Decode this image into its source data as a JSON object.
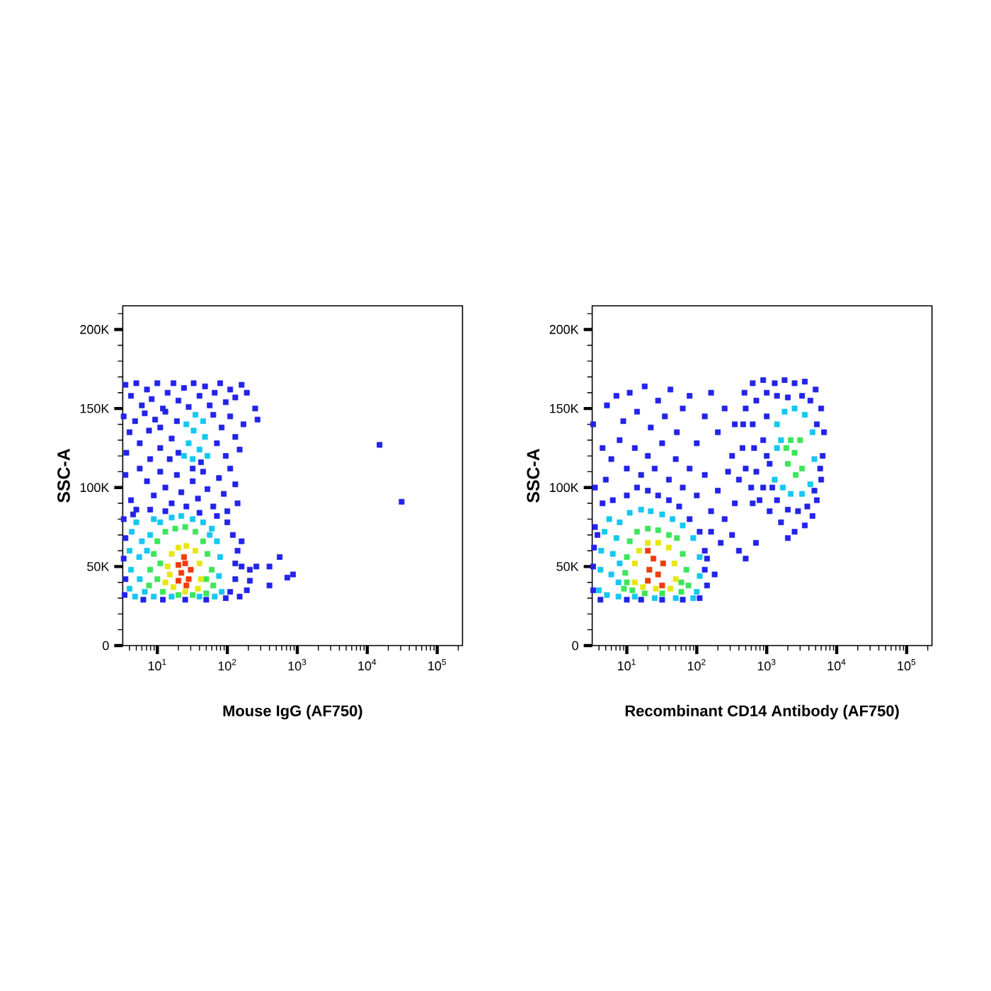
{
  "chart_data": [
    {
      "type": "scatter",
      "xlabel": "Mouse IgG (AF750)",
      "ylabel": "SSC-A",
      "log": "x",
      "marker": "square",
      "xlim": [
        3.2,
        230000
      ],
      "ylim": [
        0,
        215000
      ],
      "xticks": [
        {
          "value": 4,
          "label": null
        },
        {
          "value": 5,
          "label": null
        },
        {
          "value": 6,
          "label": null
        },
        {
          "value": 7,
          "label": null
        },
        {
          "value": 8,
          "label": null
        },
        {
          "value": 9,
          "label": null
        },
        {
          "value": 10,
          "label": "10$^{1}$"
        },
        {
          "value": 20,
          "label": null
        },
        {
          "value": 30,
          "label": null
        },
        {
          "value": 40,
          "label": null
        },
        {
          "value": 50,
          "label": null
        },
        {
          "value": 60,
          "label": null
        },
        {
          "value": 70,
          "label": null
        },
        {
          "value": 80,
          "label": null
        },
        {
          "value": 90,
          "label": null
        },
        {
          "value": 100,
          "label": "10$^{2}$"
        },
        {
          "value": 200,
          "label": null
        },
        {
          "value": 300,
          "label": null
        },
        {
          "value": 400,
          "label": null
        },
        {
          "value": 500,
          "label": null
        },
        {
          "value": 600,
          "label": null
        },
        {
          "value": 700,
          "label": null
        },
        {
          "value": 800,
          "label": null
        },
        {
          "value": 900,
          "label": null
        },
        {
          "value": 1000,
          "label": "10$^{3}$"
        },
        {
          "value": 2000,
          "label": null
        },
        {
          "value": 3000,
          "label": null
        },
        {
          "value": 4000,
          "label": null
        },
        {
          "value": 5000,
          "label": null
        },
        {
          "value": 6000,
          "label": null
        },
        {
          "value": 7000,
          "label": null
        },
        {
          "value": 8000,
          "label": null
        },
        {
          "value": 9000,
          "label": null
        },
        {
          "value": 10000,
          "label": "10$^{4}$"
        },
        {
          "value": 20000,
          "label": null
        },
        {
          "value": 30000,
          "label": null
        },
        {
          "value": 40000,
          "label": null
        },
        {
          "value": 50000,
          "label": null
        },
        {
          "value": 60000,
          "label": null
        },
        {
          "value": 70000,
          "label": null
        },
        {
          "value": 80000,
          "label": null
        },
        {
          "value": 90000,
          "label": null
        },
        {
          "value": 100000,
          "label": "10$^{5}$"
        },
        {
          "value": 200000,
          "label": null
        }
      ],
      "yticks": [
        0,
        {
          "value": 10000,
          "label": null
        },
        {
          "value": 20000,
          "label": null
        },
        {
          "value": 30000,
          "label": null
        },
        {
          "value": 40000,
          "label": null
        },
        {
          "value": 50000,
          "label": "50K"
        },
        {
          "value": 60000,
          "label": null
        },
        {
          "value": 70000,
          "label": null
        },
        {
          "value": 80000,
          "label": null
        },
        {
          "value": 90000,
          "label": null
        },
        {
          "value": 100000,
          "label": "100K"
        },
        {
          "value": 110000,
          "label": null
        },
        {
          "value": 120000,
          "label": null
        },
        {
          "value": 130000,
          "label": null
        },
        {
          "value": 140000,
          "label": null
        },
        {
          "value": 150000,
          "label": "150K"
        },
        {
          "value": 160000,
          "label": null
        },
        {
          "value": 170000,
          "label": null
        },
        {
          "value": 180000,
          "label": null
        },
        {
          "value": 190000,
          "label": null
        },
        {
          "value": 200000,
          "label": "200K"
        },
        {
          "value": 210000,
          "label": null
        }
      ],
      "series": [
        {
          "color": "#2323e8",
          "x": [
            3.5,
            4.2,
            5.0,
            6.0,
            7.1,
            8.3,
            10,
            12,
            14,
            17,
            20,
            24,
            28,
            33,
            40,
            48,
            56,
            66,
            79,
            95,
            110,
            130,
            160,
            190,
            3.3,
            4.0,
            3.6,
            4.8,
            5.6,
            6.6,
            7.9,
            7.6,
            9.3,
            11,
            11,
            13,
            16,
            15,
            19,
            20,
            63,
            71,
            83,
            95,
            110,
            130,
            150,
            170,
            32,
            42,
            270,
            250,
            5.6,
            7.1,
            8.9,
            11,
            13,
            16,
            19,
            22,
            26,
            32,
            38,
            45,
            52,
            63,
            76,
            89,
            110,
            130,
            140,
            4.2,
            3.5,
            5.0,
            100,
            100,
            120,
            140,
            160,
            130,
            110,
            150,
            95,
            130,
            160,
            3.3,
            3.5,
            3.3,
            3.5,
            3.4,
            4.5,
            7.9,
            13,
            40,
            71,
            25,
            12,
            6.3,
            50,
            210,
            210,
            260,
            400,
            400,
            560,
            720,
            870,
            190,
            15000,
            31000
          ],
          "values": [
            165000,
            158000,
            166000,
            152000,
            162000,
            156000,
            166000,
            150000,
            160000,
            166000,
            155000,
            163000,
            151000,
            166000,
            158000,
            164000,
            152000,
            160000,
            166000,
            154000,
            162000,
            157000,
            165000,
            160000,
            145000,
            135000,
            122000,
            142000,
            128000,
            147000,
            118000,
            136000,
            143000,
            125000,
            138000,
            148000,
            131000,
            118000,
            142000,
            122000,
            146000,
            128000,
            138000,
            120000,
            145000,
            132000,
            124000,
            140000,
            112000,
            116000,
            143000,
            150000,
            112000,
            104000,
            95000,
            110000,
            100000,
            90000,
            108000,
            97000,
            88000,
            104000,
            93000,
            110000,
            99000,
            88000,
            106000,
            96000,
            112000,
            102000,
            90000,
            92000,
            108000,
            86000,
            85000,
            78000,
            70000,
            60000,
            50000,
            42000,
            34000,
            31000,
            30000,
            52000,
            66000,
            80000,
            68000,
            55000,
            42000,
            32000,
            83000,
            86000,
            85000,
            84000,
            82000,
            29000,
            29000,
            29000,
            29000,
            48000,
            41000,
            50000,
            50000,
            38000,
            56000,
            43000,
            45000,
            35000,
            127000,
            91000
          ]
        },
        {
          "color": "#14c8f0",
          "x": [
            24,
            28,
            33,
            40,
            48,
            26,
            35,
            45,
            52,
            32,
            4.0,
            4.2,
            4.0,
            4.3,
            5.0,
            4.8,
            5.6,
            5.5,
            6.0,
            6.6,
            8.9,
            11,
            16,
            22,
            32,
            45,
            60,
            71,
            79,
            76,
            83,
            66,
            40,
            16,
            8.9,
            7.9,
            56,
            7.1
          ],
          "values": [
            120000,
            128000,
            136000,
            124000,
            132000,
            140000,
            146000,
            142000,
            120000,
            118000,
            36000,
            48000,
            60000,
            72000,
            78000,
            31000,
            42000,
            56000,
            66000,
            34000,
            80000,
            78000,
            81000,
            82000,
            80000,
            78000,
            74000,
            66000,
            56000,
            44000,
            34000,
            31000,
            31000,
            31000,
            31000,
            70000,
            70000,
            60000
          ]
        },
        {
          "color": "#3ce65a",
          "x": [
            7.6,
            7.9,
            8.9,
            10,
            13,
            18,
            25,
            35,
            45,
            52,
            60,
            63,
            50,
            32,
            20,
            12,
            10,
            11,
            50
          ],
          "values": [
            38000,
            48000,
            58000,
            66000,
            72000,
            74000,
            75000,
            72000,
            66000,
            58000,
            48000,
            38000,
            33000,
            32000,
            32000,
            34000,
            42000,
            52000,
            42000
          ]
        },
        {
          "color": "#e8e614",
          "x": [
            13,
            14,
            16,
            20,
            26,
            35,
            40,
            42,
            38,
            25,
            17,
            15
          ],
          "values": [
            40000,
            50000,
            58000,
            62000,
            63000,
            60000,
            52000,
            42000,
            36000,
            34000,
            37000,
            45000
          ]
        },
        {
          "color": "#f03c0a",
          "x": [
            20,
            22,
            25,
            28,
            24,
            30,
            20,
            26
          ],
          "values": [
            41000,
            46000,
            52000,
            42000,
            56000,
            48000,
            51000,
            38000
          ]
        }
      ]
    },
    {
      "type": "scatter",
      "xlabel": "Recombinant CD14 Antibody (AF750)",
      "ylabel": "SSC-A",
      "log": "x",
      "marker": "square",
      "xlim": [
        3.2,
        230000
      ],
      "ylim": [
        0,
        215000
      ],
      "xticks": [
        {
          "value": 4,
          "label": null
        },
        {
          "value": 5,
          "label": null
        },
        {
          "value": 6,
          "label": null
        },
        {
          "value": 7,
          "label": null
        },
        {
          "value": 8,
          "label": null
        },
        {
          "value": 9,
          "label": null
        },
        {
          "value": 10,
          "label": "10$^{1}$"
        },
        {
          "value": 20,
          "label": null
        },
        {
          "value": 30,
          "label": null
        },
        {
          "value": 40,
          "label": null
        },
        {
          "value": 50,
          "label": null
        },
        {
          "value": 60,
          "label": null
        },
        {
          "value": 70,
          "label": null
        },
        {
          "value": 80,
          "label": null
        },
        {
          "value": 90,
          "label": null
        },
        {
          "value": 100,
          "label": "10$^{2}$"
        },
        {
          "value": 200,
          "label": null
        },
        {
          "value": 300,
          "label": null
        },
        {
          "value": 400,
          "label": null
        },
        {
          "value": 500,
          "label": null
        },
        {
          "value": 600,
          "label": null
        },
        {
          "value": 700,
          "label": null
        },
        {
          "value": 800,
          "label": null
        },
        {
          "value": 900,
          "label": null
        },
        {
          "value": 1000,
          "label": "10$^{3}$"
        },
        {
          "value": 2000,
          "label": null
        },
        {
          "value": 3000,
          "label": null
        },
        {
          "value": 4000,
          "label": null
        },
        {
          "value": 5000,
          "label": null
        },
        {
          "value": 6000,
          "label": null
        },
        {
          "value": 7000,
          "label": null
        },
        {
          "value": 8000,
          "label": null
        },
        {
          "value": 9000,
          "label": null
        },
        {
          "value": 10000,
          "label": "10$^{4}$"
        },
        {
          "value": 20000,
          "label": null
        },
        {
          "value": 30000,
          "label": null
        },
        {
          "value": 40000,
          "label": null
        },
        {
          "value": 50000,
          "label": null
        },
        {
          "value": 60000,
          "label": null
        },
        {
          "value": 70000,
          "label": null
        },
        {
          "value": 80000,
          "label": null
        },
        {
          "value": 90000,
          "label": null
        },
        {
          "value": 100000,
          "label": "10$^{5}$"
        },
        {
          "value": 200000,
          "label": null
        }
      ],
      "yticks": [
        0,
        {
          "value": 10000,
          "label": null
        },
        {
          "value": 20000,
          "label": null
        },
        {
          "value": 30000,
          "label": null
        },
        {
          "value": 40000,
          "label": null
        },
        {
          "value": 50000,
          "label": "50K"
        },
        {
          "value": 60000,
          "label": null
        },
        {
          "value": 70000,
          "label": null
        },
        {
          "value": 80000,
          "label": null
        },
        {
          "value": 90000,
          "label": null
        },
        {
          "value": 100000,
          "label": "100K"
        },
        {
          "value": 110000,
          "label": null
        },
        {
          "value": 120000,
          "label": null
        },
        {
          "value": 130000,
          "label": null
        },
        {
          "value": 140000,
          "label": null
        },
        {
          "value": 150000,
          "label": "150K"
        },
        {
          "value": 160000,
          "label": null
        },
        {
          "value": 170000,
          "label": null
        },
        {
          "value": 180000,
          "label": null
        },
        {
          "value": 190000,
          "label": null
        },
        {
          "value": 200000,
          "label": "200K"
        },
        {
          "value": 210000,
          "label": null
        }
      ],
      "series": [
        {
          "color": "#2323e8",
          "x": [
            5.2,
            7.1,
            8.9,
            11,
            14,
            18,
            22,
            28,
            35,
            42,
            52,
            63,
            79,
            100,
            130,
            160,
            200,
            250,
            320,
            350,
            4.5,
            6.0,
            7.9,
            10,
            13,
            16,
            20,
            25,
            32,
            40,
            50,
            63,
            79,
            100,
            130,
            160,
            200,
            250,
            280,
            320,
            350,
            400,
            220,
            160,
            140,
            3.5,
            5.0,
            3.3,
            3.8,
            500,
            400,
            700,
            630,
            3.3,
            3.3,
            3.4,
            3.5,
            4.5,
            6.3,
            10,
            14,
            20,
            28,
            40,
            56,
            79,
            110,
            130,
            130,
            140,
            110,
            63,
            32,
            16,
            10,
            4.2,
            180,
            480,
            630,
            890,
            1300,
            1800,
            2500,
            3500,
            5000,
            6000,
            6600,
            6300,
            6000,
            5200,
            4500,
            3500,
            2500,
            2000,
            1600,
            1100,
            790,
            600,
            500,
            450,
            460,
            500,
            710,
            630,
            660,
            710,
            890,
            1000,
            890,
            1100,
            1000,
            1400,
            2000,
            3200,
            4200,
            5200,
            5800,
            4800,
            3800,
            2800,
            2000,
            1400,
            1200,
            1000
          ],
          "values": [
            152000,
            158000,
            142000,
            160000,
            148000,
            164000,
            138000,
            155000,
            145000,
            162000,
            135000,
            150000,
            158000,
            128000,
            145000,
            160000,
            135000,
            150000,
            120000,
            140000,
            125000,
            118000,
            130000,
            112000,
            125000,
            108000,
            120000,
            112000,
            128000,
            105000,
            118000,
            100000,
            112000,
            95000,
            108000,
            85000,
            98000,
            80000,
            110000,
            70000,
            90000,
            60000,
            65000,
            72000,
            55000,
            100000,
            105000,
            140000,
            70000,
            55000,
            105000,
            65000,
            90000,
            35000,
            50000,
            62000,
            75000,
            90000,
            92000,
            95000,
            100000,
            98000,
            95000,
            92000,
            88000,
            80000,
            72000,
            60000,
            48000,
            38000,
            30000,
            29000,
            29000,
            29000,
            29000,
            29000,
            45000,
            160000,
            166000,
            168000,
            166000,
            168000,
            166000,
            167000,
            162000,
            150000,
            135000,
            120000,
            105000,
            92000,
            82000,
            76000,
            72000,
            68000,
            78000,
            85000,
            92000,
            100000,
            112000,
            125000,
            140000,
            150000,
            155000,
            140000,
            125000,
            110000,
            100000,
            145000,
            130000,
            115000,
            160000,
            158000,
            157000,
            158000,
            155000,
            140000,
            112000,
            98000,
            88000,
            85000,
            86000,
            92000,
            100000,
            120000
          ]
        },
        {
          "color": "#14c8f0",
          "x": [
            1300,
            1400,
            1400,
            1800,
            2500,
            3500,
            4500,
            4800,
            4200,
            3200,
            2200,
            1700,
            1600,
            4.0,
            4.2,
            4.3,
            4.8,
            5.6,
            5.2,
            6.0,
            6.3,
            7.1,
            7.9,
            11,
            16,
            22,
            32,
            45,
            63,
            89,
            110,
            110,
            100,
            89,
            50,
            25,
            13,
            7.6,
            7.6,
            7.9
          ],
          "values": [
            105000,
            125000,
            140000,
            148000,
            150000,
            146000,
            135000,
            118000,
            102000,
            96000,
            96000,
            100000,
            130000,
            35000,
            48000,
            60000,
            72000,
            80000,
            32000,
            45000,
            58000,
            68000,
            78000,
            84000,
            86000,
            85000,
            83000,
            80000,
            76000,
            68000,
            56000,
            44000,
            34000,
            30000,
            30000,
            30000,
            31000,
            31000,
            40000,
            52000
          ]
        },
        {
          "color": "#3ce65a",
          "x": [
            2000,
            2500,
            3000,
            2200,
            3200,
            2600,
            1900,
            9.1,
            9.5,
            10,
            11,
            14,
            20,
            28,
            40,
            52,
            63,
            71,
            76,
            60,
            32,
            18,
            12,
            60,
            10
          ],
          "values": [
            115000,
            122000,
            130000,
            130000,
            112000,
            108000,
            125000,
            36000,
            46000,
            56000,
            66000,
            72000,
            74000,
            73000,
            70000,
            68000,
            58000,
            48000,
            38000,
            34000,
            33000,
            33000,
            35000,
            40000,
            40000
          ]
        },
        {
          "color": "#e8e614",
          "x": [
            13,
            13,
            15,
            20,
            28,
            40,
            48,
            50,
            42,
            26,
            17
          ],
          "values": [
            40000,
            52000,
            60000,
            65000,
            65000,
            62000,
            52000,
            42000,
            36000,
            36000,
            37000
          ]
        },
        {
          "color": "#f03c0a",
          "x": [
            20,
            21,
            24,
            28,
            32,
            33,
            20
          ],
          "values": [
            41000,
            48000,
            55000,
            45000,
            38000,
            52000,
            60000
          ]
        }
      ]
    }
  ]
}
